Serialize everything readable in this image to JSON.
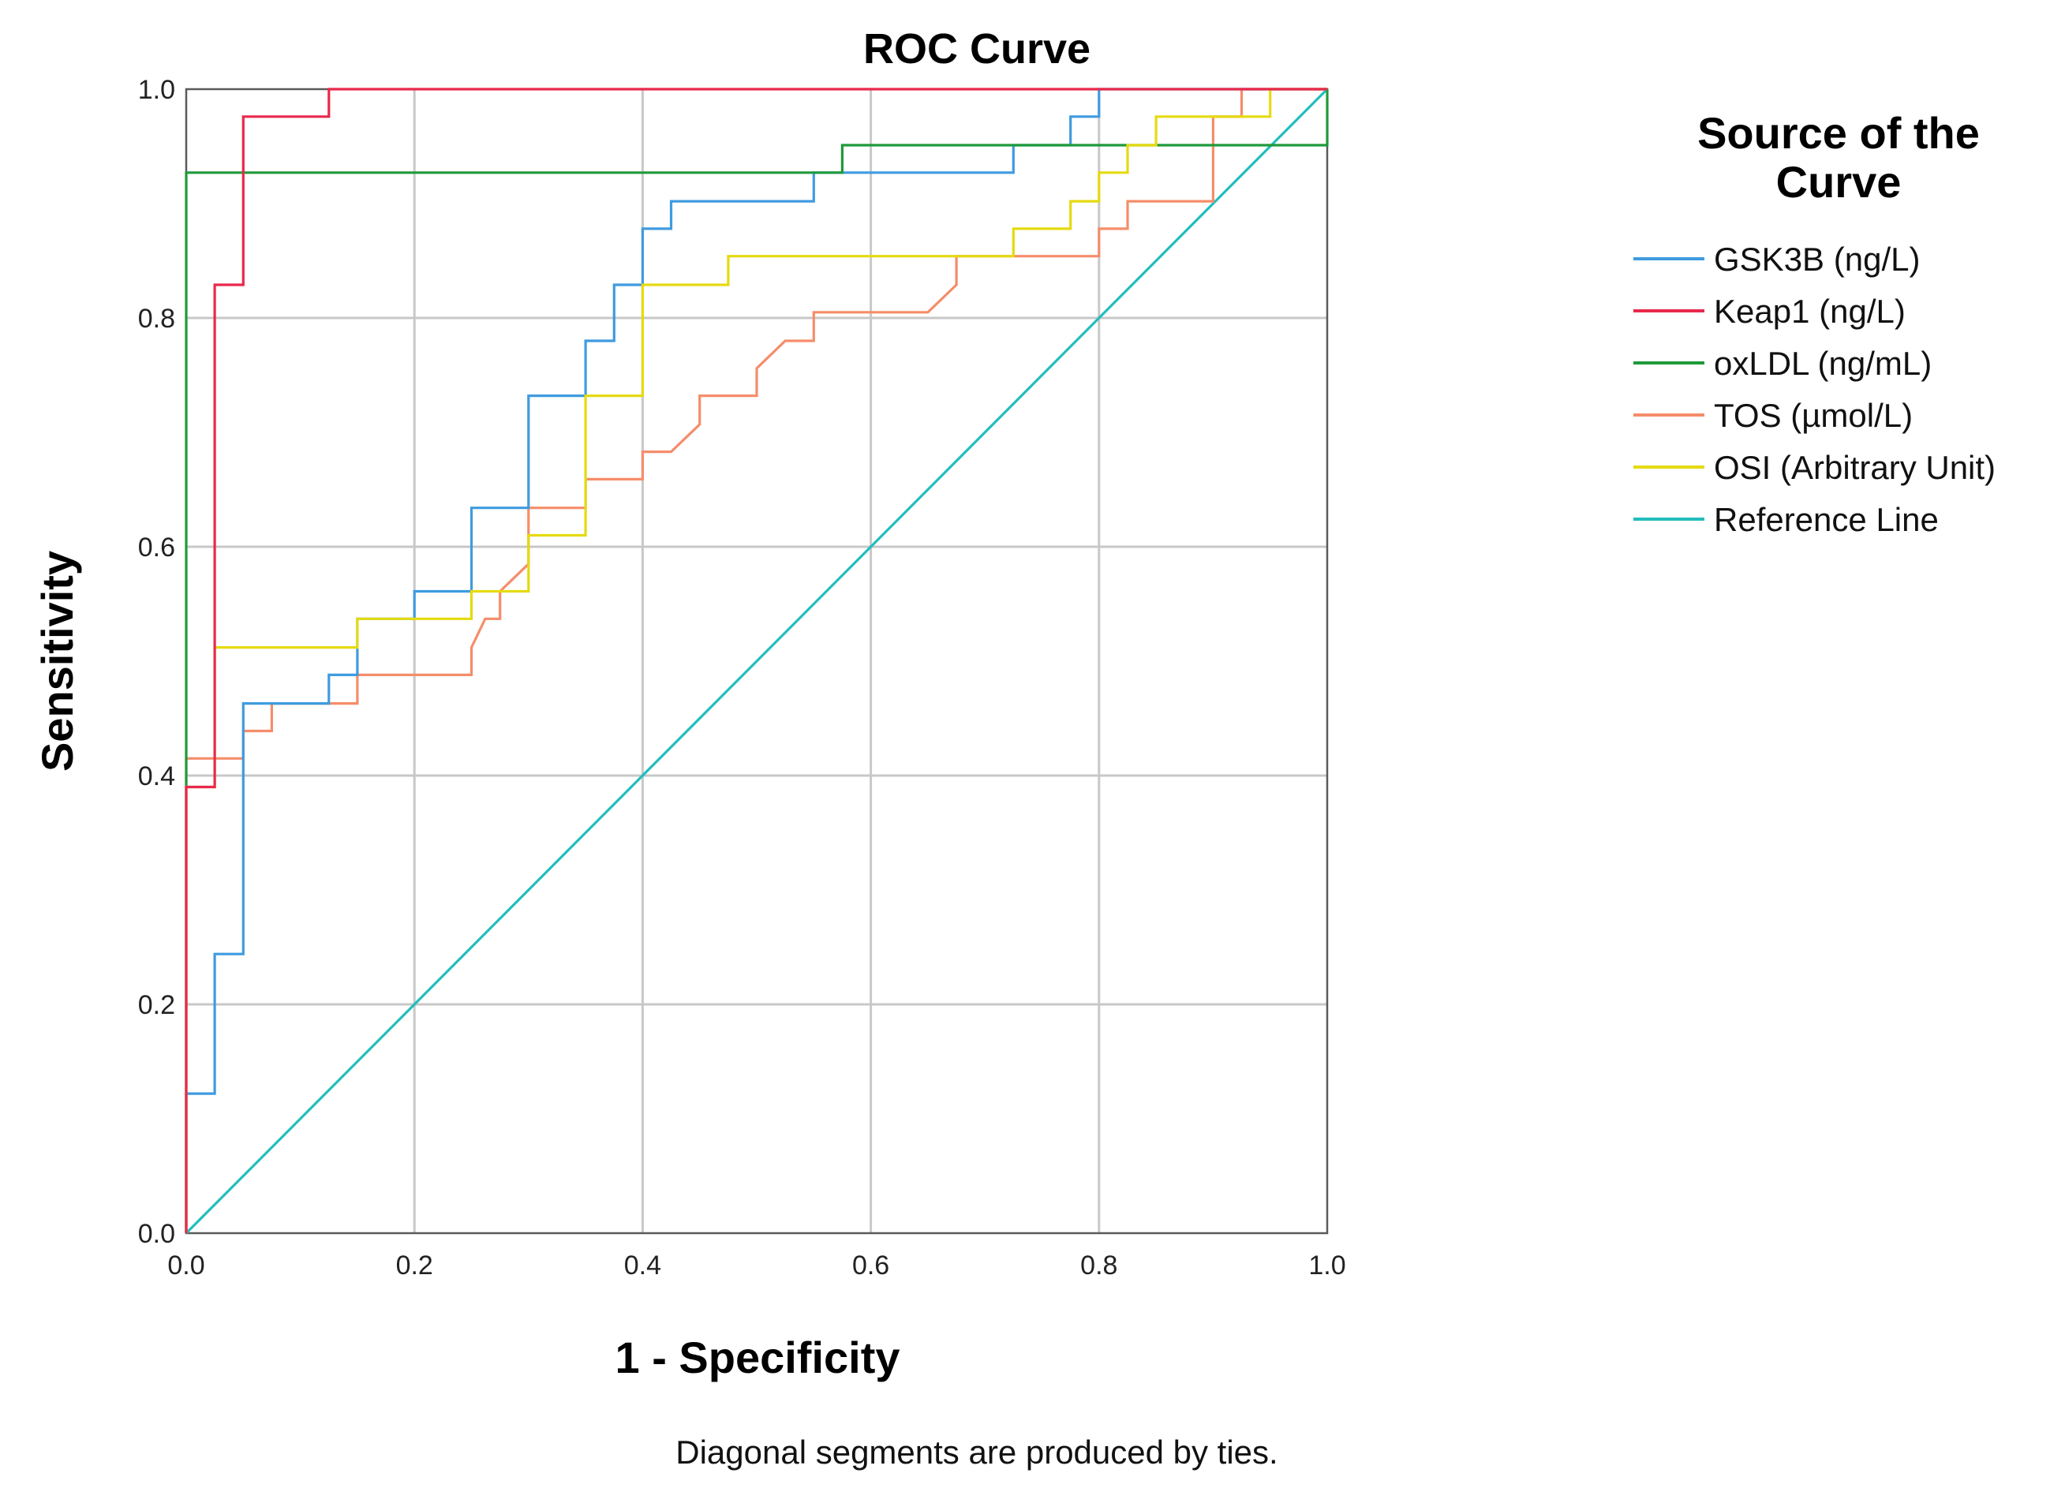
{
  "chart_data": {
    "type": "line",
    "title": "ROC Curve",
    "xlabel": "1 - Specificity",
    "ylabel": "Sensitivity",
    "xlim": [
      0,
      1
    ],
    "ylim": [
      0,
      1
    ],
    "xticks": [
      "0.0",
      "0.2",
      "0.4",
      "0.6",
      "0.8",
      "1.0"
    ],
    "yticks": [
      "0.0",
      "0.2",
      "0.4",
      "0.6",
      "0.8",
      "1.0"
    ],
    "grid": true,
    "legend": {
      "title_line1": "Source of the",
      "title_line2": "Curve",
      "placement": "right"
    },
    "footnote": "Diagonal segments are produced by ties.",
    "series": [
      {
        "name": "GSK3B (ng/L)",
        "color": "#3f9be0",
        "points": [
          [
            0,
            0
          ],
          [
            0,
            0.122
          ],
          [
            0.025,
            0.122
          ],
          [
            0.025,
            0.244
          ],
          [
            0.05,
            0.244
          ],
          [
            0.05,
            0.463
          ],
          [
            0.125,
            0.463
          ],
          [
            0.125,
            0.488
          ],
          [
            0.15,
            0.488
          ],
          [
            0.15,
            0.537
          ],
          [
            0.2,
            0.537
          ],
          [
            0.2,
            0.561
          ],
          [
            0.25,
            0.561
          ],
          [
            0.25,
            0.634
          ],
          [
            0.3,
            0.634
          ],
          [
            0.3,
            0.732
          ],
          [
            0.35,
            0.732
          ],
          [
            0.35,
            0.78
          ],
          [
            0.375,
            0.78
          ],
          [
            0.375,
            0.829
          ],
          [
            0.4,
            0.829
          ],
          [
            0.4,
            0.878
          ],
          [
            0.425,
            0.878
          ],
          [
            0.425,
            0.902
          ],
          [
            0.55,
            0.902
          ],
          [
            0.55,
            0.927
          ],
          [
            0.725,
            0.927
          ],
          [
            0.725,
            0.951
          ],
          [
            0.775,
            0.951
          ],
          [
            0.775,
            0.976
          ],
          [
            0.8,
            0.976
          ],
          [
            0.8,
            1
          ],
          [
            1,
            1
          ]
        ]
      },
      {
        "name": "Keap1 (ng/L)",
        "color": "#e8294c",
        "points": [
          [
            0,
            0
          ],
          [
            0,
            0.39
          ],
          [
            0.025,
            0.39
          ],
          [
            0.025,
            0.829
          ],
          [
            0.05,
            0.829
          ],
          [
            0.05,
            0.976
          ],
          [
            0.125,
            0.976
          ],
          [
            0.125,
            1
          ],
          [
            1,
            1
          ]
        ]
      },
      {
        "name": "oxLDL (ng/mL)",
        "color": "#1f9a3a",
        "points": [
          [
            0,
            0
          ],
          [
            0,
            0.927
          ],
          [
            0.575,
            0.927
          ],
          [
            0.575,
            0.951
          ],
          [
            1,
            0.951
          ],
          [
            1,
            1
          ]
        ]
      },
      {
        "name": "TOS (µmol/L)",
        "color": "#f58d6a",
        "points": [
          [
            0,
            0
          ],
          [
            0,
            0.415
          ],
          [
            0.05,
            0.415
          ],
          [
            0.05,
            0.439
          ],
          [
            0.075,
            0.439
          ],
          [
            0.075,
            0.463
          ],
          [
            0.15,
            0.463
          ],
          [
            0.15,
            0.488
          ],
          [
            0.25,
            0.488
          ],
          [
            0.25,
            0.512
          ],
          [
            0.262,
            0.537
          ],
          [
            0.275,
            0.537
          ],
          [
            0.275,
            0.561
          ],
          [
            0.3,
            0.585
          ],
          [
            0.3,
            0.634
          ],
          [
            0.35,
            0.634
          ],
          [
            0.35,
            0.659
          ],
          [
            0.4,
            0.659
          ],
          [
            0.4,
            0.683
          ],
          [
            0.425,
            0.683
          ],
          [
            0.45,
            0.707
          ],
          [
            0.45,
            0.732
          ],
          [
            0.5,
            0.732
          ],
          [
            0.5,
            0.756
          ],
          [
            0.525,
            0.78
          ],
          [
            0.55,
            0.78
          ],
          [
            0.55,
            0.805
          ],
          [
            0.65,
            0.805
          ],
          [
            0.675,
            0.829
          ],
          [
            0.675,
            0.854
          ],
          [
            0.8,
            0.854
          ],
          [
            0.8,
            0.878
          ],
          [
            0.825,
            0.878
          ],
          [
            0.825,
            0.902
          ],
          [
            0.9,
            0.902
          ],
          [
            0.9,
            0.976
          ],
          [
            0.925,
            0.976
          ],
          [
            0.925,
            1
          ],
          [
            1,
            1
          ]
        ]
      },
      {
        "name": "OSI (Arbitrary Unit)",
        "color": "#e5da10",
        "points": [
          [
            0,
            0
          ],
          [
            0,
            0.39
          ],
          [
            0.025,
            0.39
          ],
          [
            0.025,
            0.512
          ],
          [
            0.15,
            0.512
          ],
          [
            0.15,
            0.537
          ],
          [
            0.25,
            0.537
          ],
          [
            0.25,
            0.561
          ],
          [
            0.3,
            0.561
          ],
          [
            0.3,
            0.61
          ],
          [
            0.35,
            0.61
          ],
          [
            0.35,
            0.732
          ],
          [
            0.4,
            0.732
          ],
          [
            0.4,
            0.829
          ],
          [
            0.475,
            0.829
          ],
          [
            0.475,
            0.854
          ],
          [
            0.725,
            0.854
          ],
          [
            0.725,
            0.878
          ],
          [
            0.775,
            0.878
          ],
          [
            0.775,
            0.902
          ],
          [
            0.8,
            0.902
          ],
          [
            0.8,
            0.927
          ],
          [
            0.825,
            0.927
          ],
          [
            0.825,
            0.951
          ],
          [
            0.85,
            0.951
          ],
          [
            0.85,
            0.976
          ],
          [
            0.95,
            0.976
          ],
          [
            0.95,
            1
          ],
          [
            1,
            1
          ]
        ]
      },
      {
        "name": "Reference Line",
        "color": "#22bdbd",
        "points": [
          [
            0,
            0
          ],
          [
            1,
            1
          ]
        ]
      }
    ]
  }
}
